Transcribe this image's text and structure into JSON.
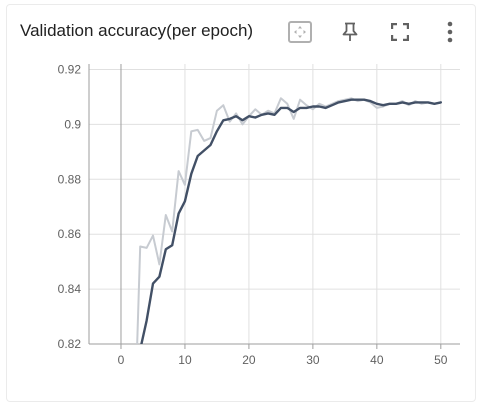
{
  "header": {
    "title": "Validation accuracy(per epoch)"
  },
  "toolbar": {
    "icons": [
      "fit-domain-icon",
      "pin-icon",
      "fullscreen-icon",
      "more-vert-icon"
    ]
  },
  "colors": {
    "smoothed_line": "#425066",
    "raw_line": "#c7cbd1",
    "grid": "#e0e0e0",
    "zero_axis": "#9e9e9e"
  },
  "chart_data": {
    "type": "line",
    "title": "Validation accuracy(per epoch)",
    "xlabel": "",
    "ylabel": "",
    "xlim": [
      -5,
      53
    ],
    "ylim": [
      0.82,
      0.922
    ],
    "x_ticks": [
      0,
      10,
      20,
      30,
      40,
      50
    ],
    "x_tick_labels": [
      "0",
      "10",
      "20",
      "30",
      "40",
      "50"
    ],
    "y_ticks": [
      0.82,
      0.84,
      0.86,
      0.88,
      0.9,
      0.92
    ],
    "y_tick_labels": [
      "0.82",
      "0.84",
      "0.86",
      "0.88",
      "0.9",
      "0.92"
    ],
    "grid": true,
    "legend": "none",
    "series": [
      {
        "style": "raw",
        "x": [
          2.5,
          3,
          4,
          5,
          6,
          7,
          8,
          9,
          10,
          11,
          12,
          13,
          14,
          15,
          16,
          17,
          18,
          19,
          20,
          21,
          22,
          23,
          24,
          25,
          26,
          27,
          28,
          29,
          30,
          31,
          32,
          33,
          34,
          35,
          36,
          37,
          38,
          39,
          40,
          41,
          42,
          43,
          44,
          45,
          46,
          47,
          48,
          49,
          50
        ],
        "values": [
          0.818,
          0.8555,
          0.855,
          0.8595,
          0.849,
          0.867,
          0.861,
          0.883,
          0.878,
          0.8975,
          0.898,
          0.894,
          0.895,
          0.905,
          0.907,
          0.901,
          0.904,
          0.9,
          0.903,
          0.9055,
          0.9035,
          0.905,
          0.904,
          0.9095,
          0.9075,
          0.902,
          0.909,
          0.907,
          0.9055,
          0.9075,
          0.9065,
          0.9075,
          0.9085,
          0.909,
          0.9095,
          0.9085,
          0.909,
          0.908,
          0.906,
          0.9065,
          0.9075,
          0.9075,
          0.9085,
          0.907,
          0.9085,
          0.9075,
          0.908,
          0.9075,
          0.908
        ]
      },
      {
        "style": "smoothed",
        "x": [
          3,
          4,
          5,
          6,
          7,
          8,
          9,
          10,
          11,
          12,
          13,
          14,
          15,
          16,
          17,
          18,
          19,
          20,
          21,
          22,
          23,
          24,
          25,
          26,
          27,
          28,
          29,
          30,
          31,
          32,
          33,
          34,
          35,
          36,
          37,
          38,
          39,
          40,
          41,
          42,
          43,
          44,
          45,
          46,
          47,
          48,
          49,
          50
        ],
        "values": [
          0.818,
          0.8285,
          0.842,
          0.8445,
          0.8545,
          0.856,
          0.8675,
          0.872,
          0.882,
          0.8885,
          0.8905,
          0.8925,
          0.8975,
          0.9015,
          0.902,
          0.903,
          0.9015,
          0.903,
          0.9025,
          0.9035,
          0.904,
          0.9035,
          0.906,
          0.906,
          0.9045,
          0.906,
          0.906,
          0.9065,
          0.9065,
          0.906,
          0.907,
          0.908,
          0.9085,
          0.909,
          0.909,
          0.909,
          0.9085,
          0.9075,
          0.907,
          0.9075,
          0.9075,
          0.908,
          0.9075,
          0.908,
          0.908,
          0.908,
          0.9075,
          0.908
        ]
      }
    ]
  }
}
